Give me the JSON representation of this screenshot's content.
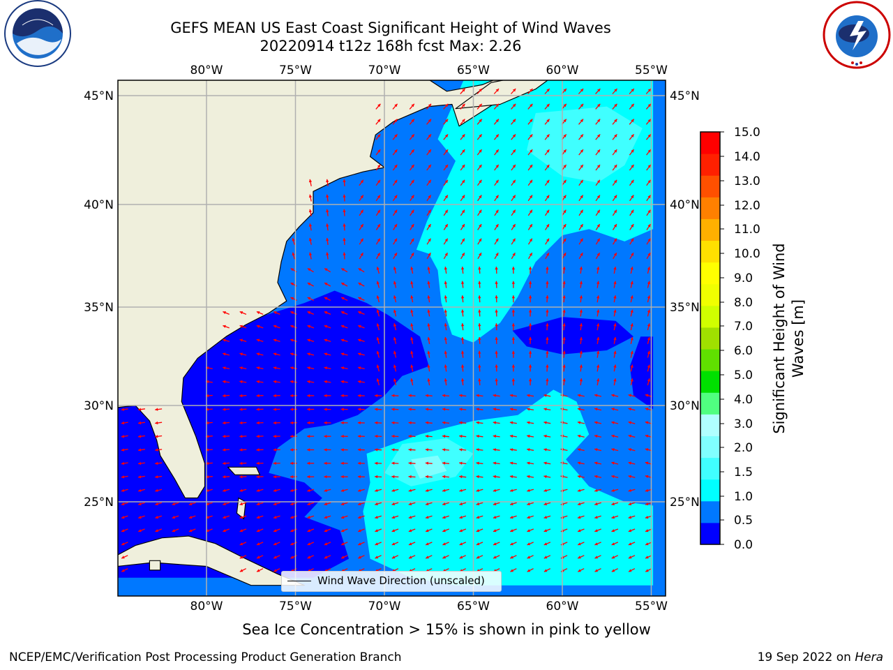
{
  "header": {
    "title_line1": "GEFS MEAN US East Coast Significant Height of Wind Waves",
    "title_line2": "20220914 t12z 168h fcst   Max: 2.26"
  },
  "logos": {
    "left": "noaa-logo",
    "right": "national-weather-service-logo"
  },
  "map": {
    "lon_labels": [
      "80°W",
      "75°W",
      "70°W",
      "65°W",
      "60°W",
      "55°W"
    ],
    "lat_labels": [
      "45°N",
      "40°N",
      "35°N",
      "30°N",
      "25°N"
    ],
    "legend_label": "Wind Wave Direction (unscaled)",
    "colors": {
      "land": "#efefdc",
      "level0": "#0000ff",
      "level1": "#0078ff",
      "level2": "#00ffff",
      "level3": "#40ffff",
      "level4": "#80ffff",
      "arrow": "#ff0000",
      "grid": "#b0b0b0"
    }
  },
  "colorbar": {
    "title_line1": "Significant Height of Wind",
    "title_line2": "Waves [m]",
    "ticks": [
      "0.0",
      "0.5",
      "1.0",
      "1.5",
      "2.0",
      "3.0",
      "4.0",
      "5.0",
      "6.0",
      "7.0",
      "8.0",
      "9.0",
      "10.0",
      "11.0",
      "12.0",
      "13.0",
      "14.0",
      "15.0"
    ],
    "colors": [
      "#0000ff",
      "#0078ff",
      "#00ffff",
      "#40ffff",
      "#80ffff",
      "#b0ffff",
      "#50ff80",
      "#00e000",
      "#60e000",
      "#a0e000",
      "#d0ff00",
      "#f0ff00",
      "#ffff00",
      "#ffe000",
      "#ffb000",
      "#ff8000",
      "#ff5000",
      "#ff2000",
      "#ff0000"
    ]
  },
  "footer": {
    "subtitle": "Sea Ice Concentration > 15% is shown in pink to yellow",
    "left": "NCEP/EMC/Verification Post Processing Product Generation Branch",
    "right_date": "19 Sep 2022 on",
    "right_host": "Hera"
  }
}
